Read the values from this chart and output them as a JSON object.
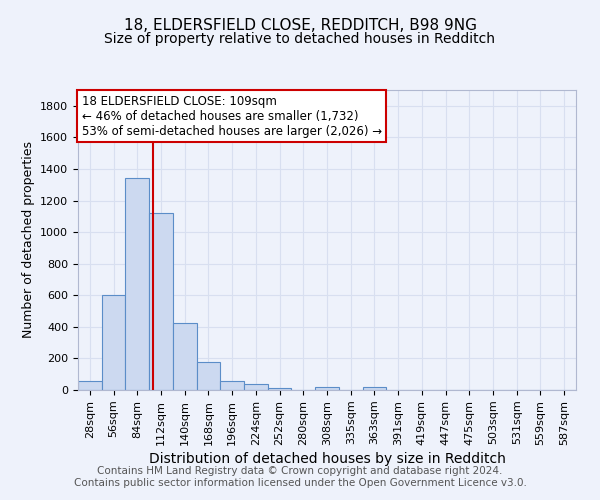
{
  "title1": "18, ELDERSFIELD CLOSE, REDDITCH, B98 9NG",
  "title2": "Size of property relative to detached houses in Redditch",
  "xlabel": "Distribution of detached houses by size in Redditch",
  "ylabel": "Number of detached properties",
  "footer1": "Contains HM Land Registry data © Crown copyright and database right 2024.",
  "footer2": "Contains public sector information licensed under the Open Government Licence v3.0.",
  "categories": [
    "28sqm",
    "56sqm",
    "84sqm",
    "112sqm",
    "140sqm",
    "168sqm",
    "196sqm",
    "224sqm",
    "252sqm",
    "280sqm",
    "308sqm",
    "335sqm",
    "363sqm",
    "391sqm",
    "419sqm",
    "447sqm",
    "475sqm",
    "503sqm",
    "531sqm",
    "559sqm",
    "587sqm"
  ],
  "values": [
    60,
    600,
    1340,
    1120,
    425,
    175,
    60,
    38,
    12,
    0,
    18,
    0,
    22,
    0,
    0,
    0,
    0,
    0,
    0,
    0,
    0
  ],
  "bar_color": "#ccd9f0",
  "bar_edge_color": "#5b8dc8",
  "vline_color": "#cc0000",
  "vline_x": 2.67,
  "annotation_line1": "18 ELDERSFIELD CLOSE: 109sqm",
  "annotation_line2": "← 46% of detached houses are smaller (1,732)",
  "annotation_line3": "53% of semi-detached houses are larger (2,026) →",
  "annotation_box_color": "white",
  "annotation_box_edge_color": "#cc0000",
  "ylim": [
    0,
    1900
  ],
  "yticks": [
    0,
    200,
    400,
    600,
    800,
    1000,
    1200,
    1400,
    1600,
    1800
  ],
  "bg_color": "#eef2fb",
  "grid_color": "#d8dff0",
  "title1_fontsize": 11,
  "title2_fontsize": 10,
  "xlabel_fontsize": 10,
  "ylabel_fontsize": 9,
  "tick_fontsize": 8,
  "footer_fontsize": 7.5,
  "ann_fontsize": 8.5
}
